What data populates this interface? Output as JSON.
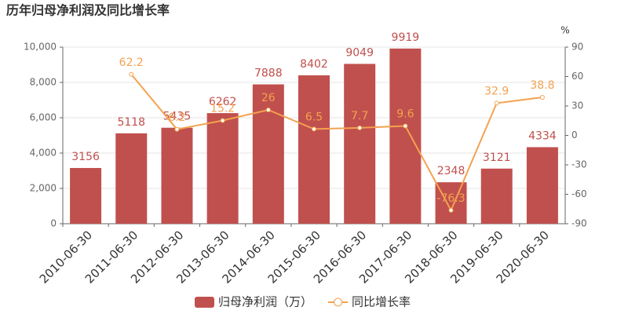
{
  "chart_data": {
    "type": "bar",
    "title": "历年归母净利润及同比增长率",
    "y2_label": "%",
    "categories": [
      "2010-06-30",
      "2011-06-30",
      "2012-06-30",
      "2013-06-30",
      "2014-06-30",
      "2015-06-30",
      "2016-06-30",
      "2017-06-30",
      "2018-06-30",
      "2019-06-30",
      "2020-06-30"
    ],
    "series": [
      {
        "name": "归母净利润（万）",
        "type": "bar",
        "color": "#c0504d",
        "values": [
          3156,
          5118,
          5435,
          6262,
          7888,
          8402,
          9049,
          9919,
          2348,
          3121,
          4334
        ]
      },
      {
        "name": "同比增长率",
        "type": "line",
        "axis": "y2",
        "color": "#f3a250",
        "values": [
          null,
          62.2,
          6.2,
          15.2,
          26,
          6.5,
          7.7,
          9.6,
          -76.3,
          32.9,
          38.8
        ]
      }
    ],
    "ylim": [
      0,
      10000
    ],
    "yticks": [
      0,
      {
        "value": 2000,
        "label": "2,000"
      },
      {
        "value": 4000,
        "label": "4,000"
      },
      {
        "value": 6000,
        "label": "6,000"
      },
      {
        "value": 8000,
        "label": "8,000"
      },
      {
        "value": 10000,
        "label": "10,000"
      }
    ],
    "y2lim": [
      -90,
      90
    ],
    "y2ticks": [
      -90,
      -60,
      -30,
      0,
      30,
      60,
      90
    ],
    "grid": true,
    "legend": "bottom"
  }
}
